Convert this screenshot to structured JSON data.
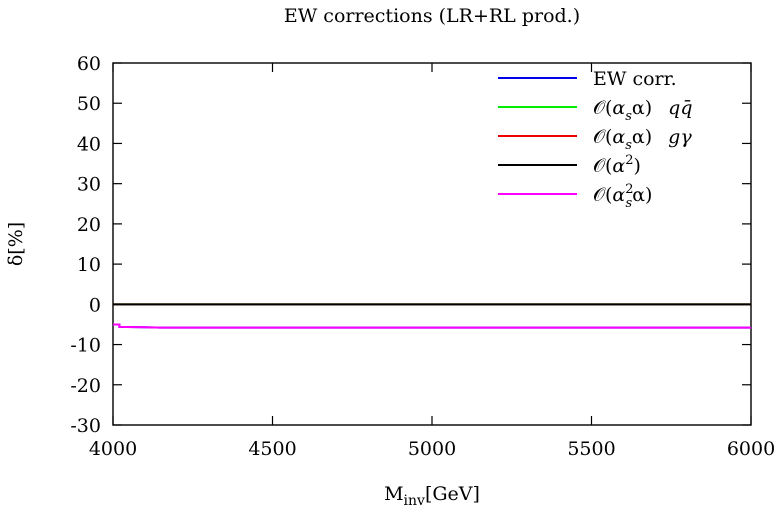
{
  "chart_data": {
    "type": "line",
    "title": "EW corrections (LR+RL prod.)",
    "xlabel_main": "M",
    "xlabel_sub": "inv",
    "xlabel_unit": "[GeV]",
    "ylabel": "δ[%]",
    "xlim": [
      4000,
      6000
    ],
    "ylim": [
      -30,
      60
    ],
    "x_ticks": [
      4000,
      4500,
      5000,
      5500,
      6000
    ],
    "y_ticks": [
      -30,
      -20,
      -10,
      0,
      10,
      20,
      30,
      40,
      50,
      60
    ],
    "x_tick_labels": [
      "4000",
      "4500",
      "5000",
      "5500",
      "6000"
    ],
    "y_tick_labels": [
      "-30",
      "-20",
      "-10",
      "0",
      "10",
      "20",
      "30",
      "40",
      "50",
      "60"
    ],
    "legend_position": "top-right",
    "series": [
      {
        "name": "EW corr.",
        "color": "#0000ee",
        "x": [
          4000,
          4020,
          4020,
          4100,
          4150,
          6000
        ],
        "y": [
          -5.0,
          -5.0,
          -5.6,
          -5.7,
          -5.8,
          -5.8
        ]
      },
      {
        "name": "O(αsα) qq̄",
        "color": "#00ee00",
        "x": [
          4000,
          6000
        ],
        "y": [
          0,
          0
        ]
      },
      {
        "name": "O(αsα) gγ",
        "color": "#ee0000",
        "x": [
          4000,
          6000
        ],
        "y": [
          0,
          0
        ]
      },
      {
        "name": "O(α²)",
        "color": "#000000",
        "x": [
          4000,
          6000
        ],
        "y": [
          0,
          0
        ]
      },
      {
        "name": "O(αs²α)",
        "color": "#ff00ff",
        "x": [
          4000,
          4020,
          4020,
          4100,
          4150,
          6000
        ],
        "y": [
          -5.0,
          -5.0,
          -5.6,
          -5.7,
          -5.8,
          -5.8
        ]
      }
    ],
    "legend_labels": [
      {
        "main": "EW corr."
      },
      {
        "o": "𝒪(",
        "a": "α",
        "sub": "s",
        "b": "α)",
        "extra": "qq̄"
      },
      {
        "o": "𝒪(",
        "a": "α",
        "sub": "s",
        "b": "α)",
        "extra": "gγ"
      },
      {
        "o": "𝒪(",
        "a": "α",
        "sup": "2",
        "b": ")"
      },
      {
        "o": "𝒪(",
        "a": "α",
        "sup": "2",
        "sub": "s",
        "b": "α)"
      }
    ]
  }
}
